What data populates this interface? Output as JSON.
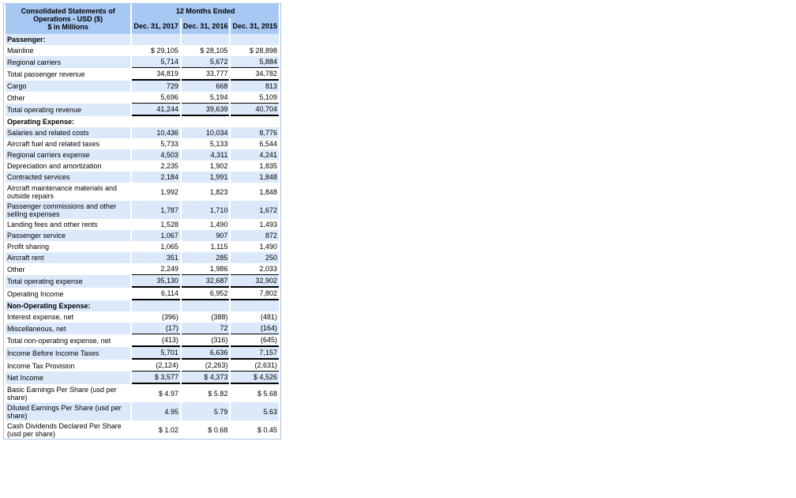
{
  "header": {
    "title_line1": "Consolidated Statements of",
    "title_line2": "Operations - USD ($)",
    "title_line3": "$ in Millions",
    "period": "12 Months Ended",
    "columns": [
      "Dec. 31, 2017",
      "Dec. 31, 2016",
      "Dec. 31, 2015"
    ]
  },
  "rows": [
    {
      "label": "Passenger:",
      "values": [
        "",
        "",
        ""
      ]
    },
    {
      "label": "Mainline",
      "values": [
        "$ 29,105",
        "$ 28,105",
        "$ 28,898"
      ]
    },
    {
      "label": "Regional carriers",
      "values": [
        "5,714",
        "5,672",
        "5,884"
      ]
    },
    {
      "label": "Total passenger revenue",
      "values": [
        "34,819",
        "33,777",
        "34,782"
      ]
    },
    {
      "label": "Cargo",
      "values": [
        "729",
        "668",
        "813"
      ]
    },
    {
      "label": "Other",
      "values": [
        "5,696",
        "5,194",
        "5,109"
      ]
    },
    {
      "label": "Total operating revenue",
      "values": [
        "41,244",
        "39,639",
        "40,704"
      ]
    },
    {
      "label": "Operating Expense:",
      "values": [
        "",
        "",
        ""
      ]
    },
    {
      "label": "Salaries and related costs",
      "values": [
        "10,436",
        "10,034",
        "8,776"
      ]
    },
    {
      "label": "Aircraft fuel and related taxes",
      "values": [
        "5,733",
        "5,133",
        "6,544"
      ]
    },
    {
      "label": "Regional carriers expense",
      "values": [
        "4,503",
        "4,311",
        "4,241"
      ]
    },
    {
      "label": "Depreciation and amortization",
      "values": [
        "2,235",
        "1,902",
        "1,835"
      ]
    },
    {
      "label": "Contracted services",
      "values": [
        "2,184",
        "1,991",
        "1,848"
      ]
    },
    {
      "label": "Aircraft maintenance materials and outside repairs",
      "values": [
        "1,992",
        "1,823",
        "1,848"
      ]
    },
    {
      "label": "Passenger commissions and other selling expenses",
      "values": [
        "1,787",
        "1,710",
        "1,672"
      ]
    },
    {
      "label": "Landing fees and other rents",
      "values": [
        "1,528",
        "1,490",
        "1,493"
      ]
    },
    {
      "label": "Passenger service",
      "values": [
        "1,067",
        "907",
        "872"
      ]
    },
    {
      "label": "Profit sharing",
      "values": [
        "1,065",
        "1,115",
        "1,490"
      ]
    },
    {
      "label": "Aircraft rent",
      "values": [
        "351",
        "285",
        "250"
      ]
    },
    {
      "label": "Other",
      "values": [
        "2,249",
        "1,986",
        "2,033"
      ]
    },
    {
      "label": "Total operating expense",
      "values": [
        "35,130",
        "32,687",
        "32,902"
      ]
    },
    {
      "label": "Operating Income",
      "values": [
        "6,114",
        "6,952",
        "7,802"
      ]
    },
    {
      "label": "Non-Operating Expense:",
      "values": [
        "",
        "",
        ""
      ]
    },
    {
      "label": "Interest expense, net",
      "values": [
        "(396)",
        "(388)",
        "(481)"
      ]
    },
    {
      "label": "Miscellaneous, net",
      "values": [
        "(17)",
        "72",
        "(164)"
      ]
    },
    {
      "label": "Total non-operating expense, net",
      "values": [
        "(413)",
        "(316)",
        "(645)"
      ]
    },
    {
      "label": "Income Before Income Taxes",
      "values": [
        "5,701",
        "6,636",
        "7,157"
      ]
    },
    {
      "label": "Income Tax Provision",
      "values": [
        "(2,124)",
        "(2,263)",
        "(2,631)"
      ]
    },
    {
      "label": "Net Income",
      "values": [
        "$ 3,577",
        "$ 4,373",
        "$ 4,526"
      ]
    },
    {
      "label": "Basic Earnings Per Share (usd per share)",
      "values": [
        "$ 4.97",
        "$ 5.82",
        "$ 5.68"
      ]
    },
    {
      "label": "Diluted Earnings Per Share (usd per share)",
      "values": [
        "4.95",
        "5.79",
        "5.63"
      ]
    },
    {
      "label": "Cash Dividends Declared Per Share (usd per share)",
      "values": [
        "$ 1.02",
        "$ 0.68",
        "$ 0.45"
      ]
    }
  ],
  "colors": {
    "header_bg": "#a8c8f4",
    "alt_row_bg": "#dce9fa",
    "border": "#a8c3e8"
  }
}
